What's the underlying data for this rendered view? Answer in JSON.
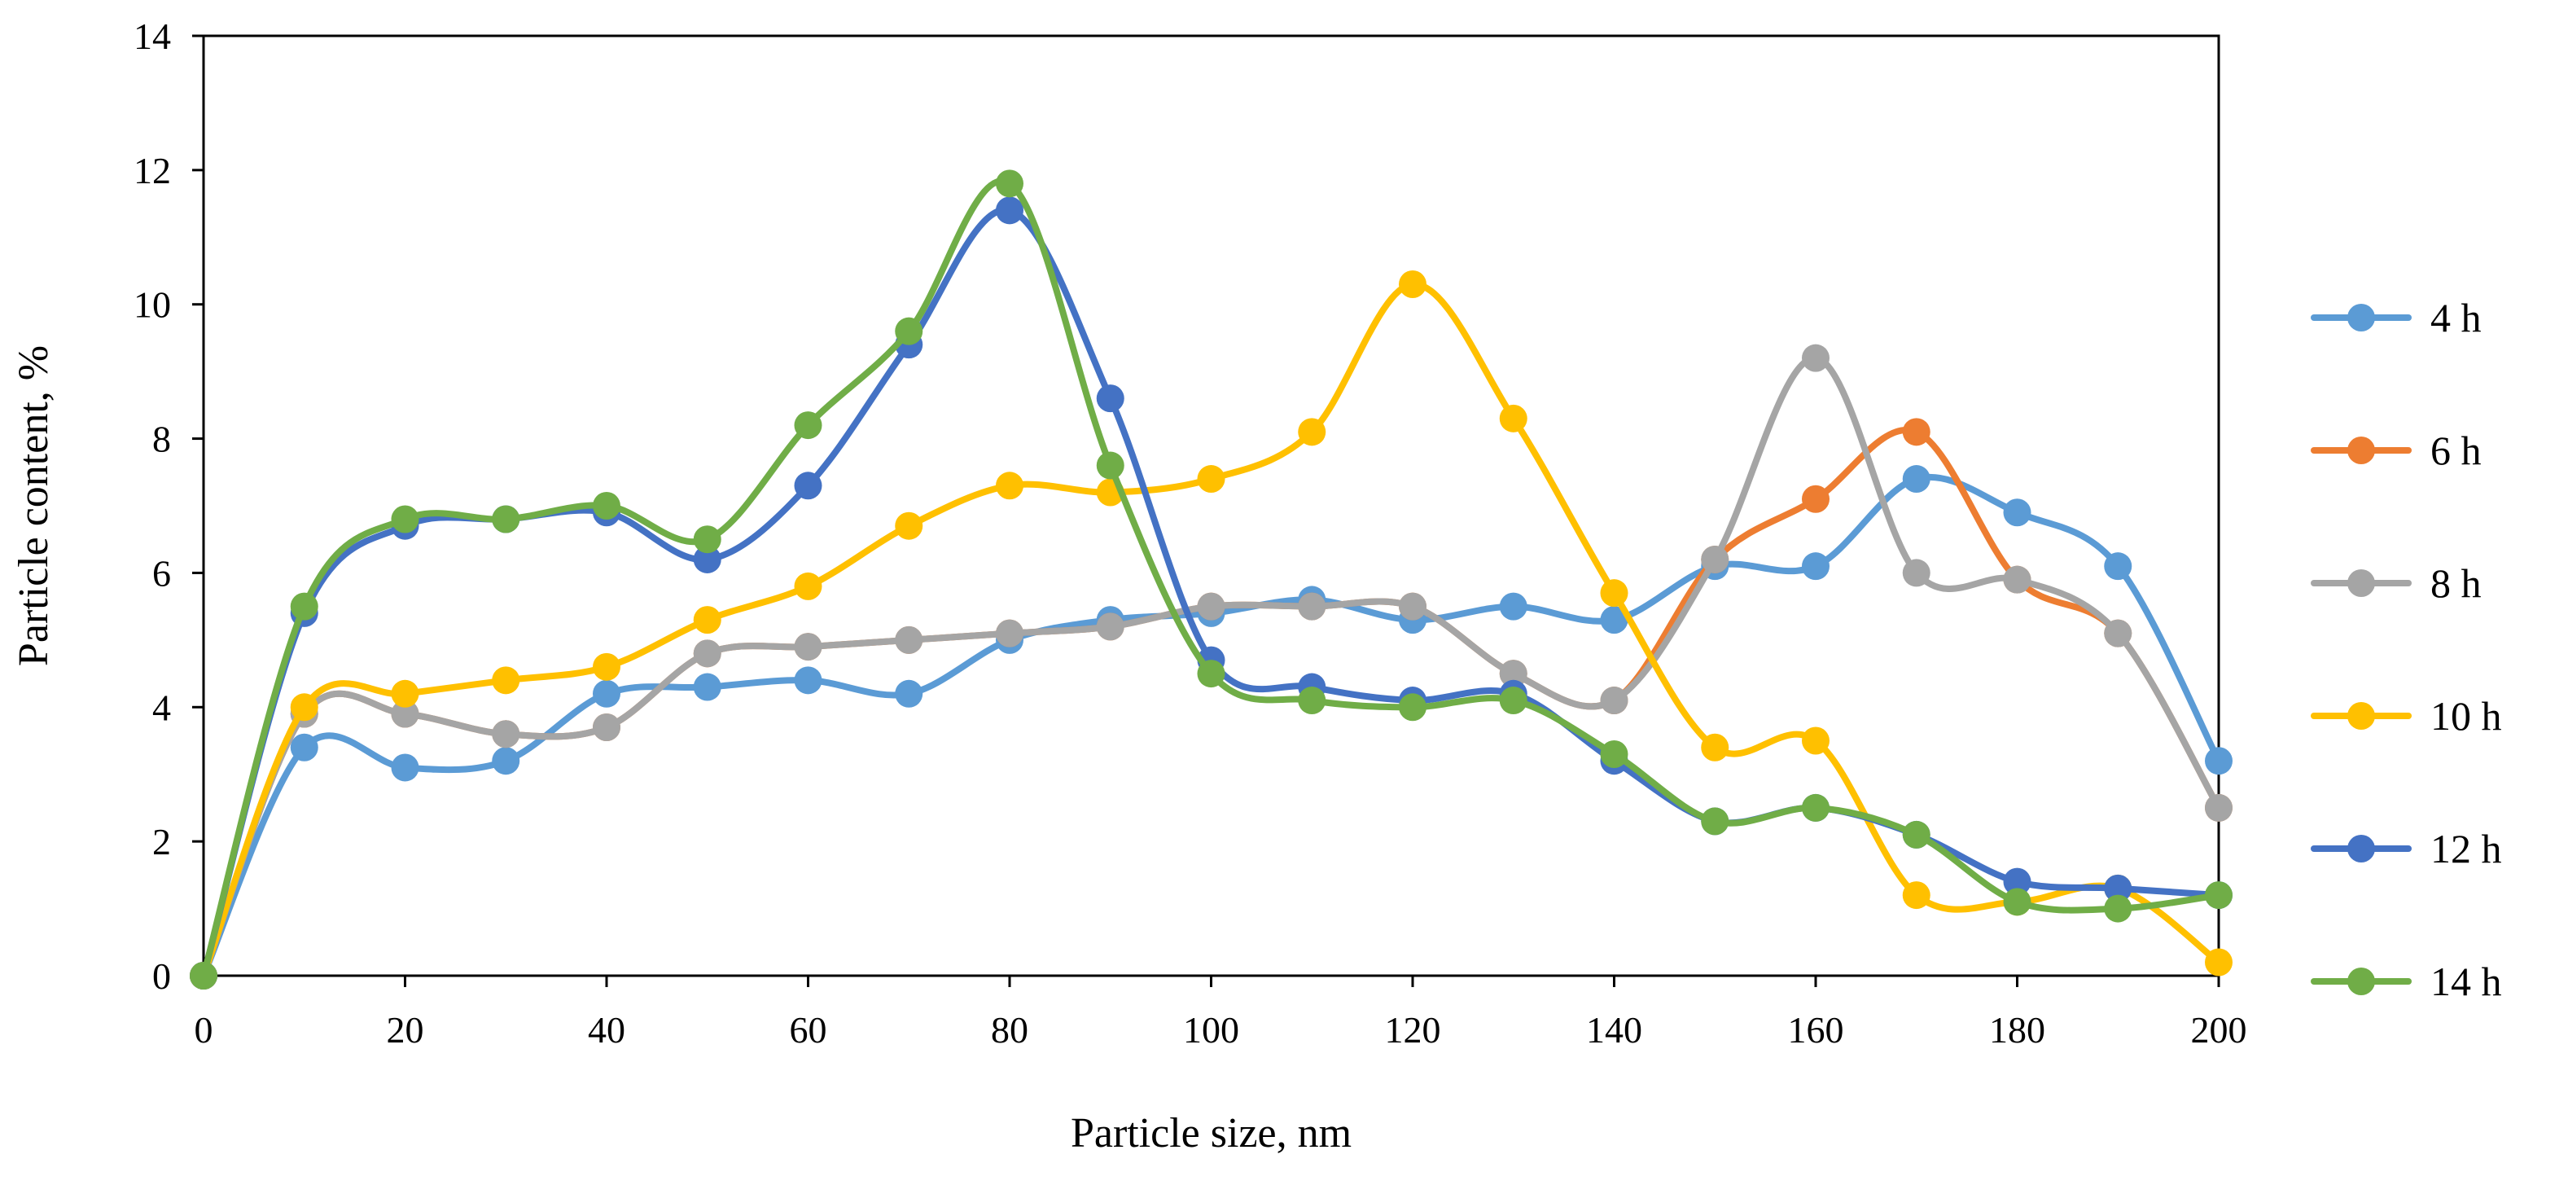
{
  "chart_data": {
    "type": "line",
    "title": "",
    "xlabel": "Particle size, nm",
    "ylabel": "Particle content, %",
    "x": [
      0,
      10,
      20,
      30,
      40,
      50,
      60,
      70,
      80,
      90,
      100,
      110,
      120,
      130,
      140,
      150,
      160,
      170,
      180,
      190,
      200
    ],
    "xlim": [
      0,
      200
    ],
    "ylim": [
      0,
      14
    ],
    "x_ticks": [
      0,
      20,
      40,
      60,
      80,
      100,
      120,
      140,
      160,
      180,
      200
    ],
    "y_ticks": [
      0,
      2,
      4,
      6,
      8,
      10,
      12,
      14
    ],
    "x_tick_labels": [
      "0",
      "20",
      "40",
      "60",
      "80",
      "100",
      "120",
      "140",
      "160",
      "180",
      "200"
    ],
    "y_tick_labels": [
      "0",
      "2",
      "4",
      "6",
      "8",
      "10",
      "12",
      "14"
    ],
    "grid": false,
    "smooth": true,
    "legend_position": "right",
    "series": [
      {
        "name": "4 h",
        "color": "#5B9BD5",
        "values": [
          0,
          3.4,
          3.1,
          3.2,
          4.2,
          4.3,
          4.4,
          4.2,
          5.0,
          5.3,
          5.4,
          5.6,
          5.3,
          5.5,
          5.3,
          6.1,
          6.1,
          7.4,
          6.9,
          6.1,
          3.2
        ]
      },
      {
        "name": "6 h",
        "color": "#ED7D31",
        "values": [
          0,
          3.9,
          3.9,
          3.6,
          3.7,
          4.8,
          4.9,
          5.0,
          5.1,
          5.2,
          5.5,
          5.5,
          5.5,
          4.5,
          4.1,
          6.2,
          7.1,
          8.1,
          5.9,
          5.1,
          2.5
        ]
      },
      {
        "name": "8 h",
        "color": "#A5A5A5",
        "values": [
          0,
          3.9,
          3.9,
          3.6,
          3.7,
          4.8,
          4.9,
          5.0,
          5.1,
          5.2,
          5.5,
          5.5,
          5.5,
          4.5,
          4.1,
          6.2,
          9.2,
          6.0,
          5.9,
          5.1,
          2.5
        ]
      },
      {
        "name": "10 h",
        "color": "#FFC000",
        "values": [
          0,
          4.0,
          4.2,
          4.4,
          4.6,
          5.3,
          5.8,
          6.7,
          7.3,
          7.2,
          7.4,
          8.1,
          10.3,
          8.3,
          5.7,
          3.4,
          3.5,
          1.2,
          1.1,
          1.3,
          0.2
        ]
      },
      {
        "name": "12 h",
        "color": "#4472C4",
        "values": [
          0,
          5.4,
          6.7,
          6.8,
          6.9,
          6.2,
          7.3,
          9.4,
          11.4,
          8.6,
          4.7,
          4.3,
          4.1,
          4.2,
          3.2,
          2.3,
          2.5,
          2.1,
          1.4,
          1.3,
          1.2
        ]
      },
      {
        "name": "14 h",
        "color": "#70AD47",
        "values": [
          0,
          5.5,
          6.8,
          6.8,
          7.0,
          6.5,
          8.2,
          9.6,
          11.8,
          7.6,
          4.5,
          4.1,
          4.0,
          4.1,
          3.3,
          2.3,
          2.5,
          2.1,
          1.1,
          1.0,
          1.2
        ]
      }
    ]
  }
}
